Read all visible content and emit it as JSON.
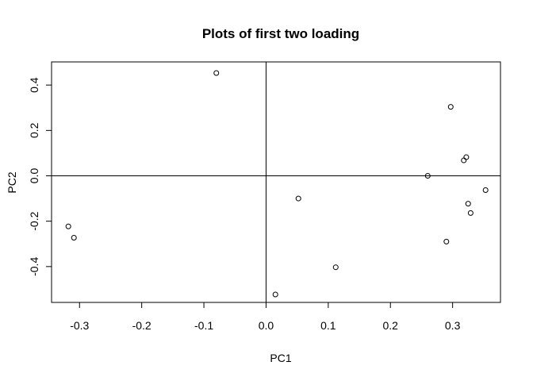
{
  "chart_data": {
    "type": "scatter",
    "title": "Plots of first two loading",
    "xlabel": "PC1",
    "ylabel": "PC2",
    "xlim": [
      -0.345,
      0.377
    ],
    "ylim": [
      -0.558,
      0.502
    ],
    "x_ticks": [
      -0.3,
      -0.2,
      -0.1,
      0.0,
      0.1,
      0.2,
      0.3
    ],
    "x_tick_labels": [
      "-0.3",
      "-0.2",
      "-0.1",
      "0.0",
      "0.1",
      "0.2",
      "0.3"
    ],
    "y_ticks": [
      -0.4,
      -0.2,
      0.0,
      0.2,
      0.4
    ],
    "y_tick_labels": [
      "-0.4",
      "-0.2",
      "0.0",
      "0.2",
      "0.4"
    ],
    "reference_lines": {
      "horizontal": [
        0.0
      ],
      "vertical": [
        0.0
      ]
    },
    "grid": false,
    "legend": "none",
    "points": [
      {
        "x": -0.08,
        "y": 0.453
      },
      {
        "x": 0.297,
        "y": 0.304
      },
      {
        "x": 0.322,
        "y": 0.082
      },
      {
        "x": 0.318,
        "y": 0.068
      },
      {
        "x": 0.26,
        "y": 0.0
      },
      {
        "x": 0.052,
        "y": -0.1
      },
      {
        "x": 0.353,
        "y": -0.063
      },
      {
        "x": 0.325,
        "y": -0.123
      },
      {
        "x": 0.329,
        "y": -0.164
      },
      {
        "x": -0.318,
        "y": -0.223
      },
      {
        "x": -0.309,
        "y": -0.273
      },
      {
        "x": 0.29,
        "y": -0.29
      },
      {
        "x": 0.112,
        "y": -0.403
      },
      {
        "x": 0.015,
        "y": -0.523
      }
    ]
  }
}
